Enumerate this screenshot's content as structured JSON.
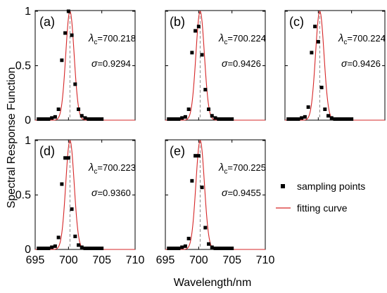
{
  "figure": {
    "ylabel": "Spectral Response Function",
    "xlabel": "Wavelength/nm",
    "legend": {
      "points_label": "sampling points",
      "curve_label": "fitting curve",
      "placement": "middle-right"
    }
  },
  "colors": {
    "points": "#000000",
    "curve": "#d62728",
    "center_line": "#8c8c8c",
    "axes": "#000000"
  },
  "chart_data": [
    {
      "type": "scatter",
      "panel_label": "(a)",
      "lambda_text": "700.218",
      "sigma_text": "0.9294",
      "xlim": [
        695,
        710
      ],
      "ylim": [
        0,
        1
      ],
      "xticks": [
        695,
        700,
        705,
        710
      ],
      "yticks": [
        0,
        0.5,
        1
      ],
      "ytick_labels": [
        "0",
        "0.5",
        "1"
      ],
      "xtick_labels": [],
      "center": 700.218,
      "sigma": 0.9294,
      "peak": 1.0,
      "x": [
        695.5,
        696,
        696.5,
        697,
        697.5,
        698,
        698.5,
        699,
        699.5,
        700,
        700.5,
        701,
        701.5,
        702,
        702.5,
        703,
        703.5,
        704,
        704.5,
        705
      ],
      "y": [
        0.01,
        0.01,
        0.01,
        0.01,
        0.02,
        0.03,
        0.1,
        0.55,
        0.8,
        1.0,
        0.78,
        0.33,
        0.1,
        0.04,
        0.02,
        0.01,
        0.01,
        0.01,
        0.01,
        0.01
      ]
    },
    {
      "type": "scatter",
      "panel_label": "(b)",
      "lambda_text": "700.224",
      "sigma_text": "0.9426",
      "xlim": [
        695,
        710
      ],
      "ylim": [
        0,
        1
      ],
      "xticks": [
        695,
        700,
        705,
        710
      ],
      "yticks": [
        0,
        0.5,
        1
      ],
      "ytick_labels": [],
      "xtick_labels": [],
      "center": 700.224,
      "sigma": 0.9426,
      "peak": 1.0,
      "x": [
        695.5,
        696,
        696.5,
        697,
        697.5,
        698,
        698.5,
        699,
        699.5,
        700,
        700.5,
        701,
        701.5,
        702,
        702.5,
        703,
        703.5,
        704,
        704.5,
        705
      ],
      "y": [
        0.01,
        0.01,
        0.01,
        0.01,
        0.02,
        0.03,
        0.1,
        0.62,
        0.82,
        0.86,
        0.6,
        0.28,
        0.1,
        0.04,
        0.02,
        0.01,
        0.01,
        0.01,
        0.01,
        0.01
      ]
    },
    {
      "type": "scatter",
      "panel_label": "(c)",
      "lambda_text": "700.224",
      "sigma_text": "0.9426",
      "xlim": [
        695,
        710
      ],
      "ylim": [
        0,
        1
      ],
      "xticks": [
        695,
        700,
        705,
        710
      ],
      "yticks": [
        0,
        0.5,
        1
      ],
      "ytick_labels": [],
      "xtick_labels": [],
      "center": 700.224,
      "sigma": 0.9426,
      "peak": 1.0,
      "x": [
        695.5,
        696,
        696.5,
        697,
        697.5,
        698,
        698.5,
        699,
        699.5,
        700,
        700.5,
        701,
        701.5,
        702,
        702.5,
        703,
        703.5,
        704,
        704.5,
        705
      ],
      "y": [
        0.01,
        0.01,
        0.01,
        0.01,
        0.02,
        0.03,
        0.12,
        0.62,
        0.86,
        0.72,
        0.3,
        0.1,
        0.04,
        0.02,
        0.01,
        0.01,
        0.01,
        0.01,
        0.01,
        0.01
      ]
    },
    {
      "type": "scatter",
      "panel_label": "(d)",
      "lambda_text": "700.223",
      "sigma_text": "0.9360",
      "xlim": [
        695,
        710
      ],
      "ylim": [
        0,
        1
      ],
      "xticks": [
        695,
        700,
        705,
        710
      ],
      "yticks": [
        0,
        0.5,
        1
      ],
      "ytick_labels": [
        "0",
        "0.5",
        "1"
      ],
      "xtick_labels": [
        "695",
        "700",
        "705",
        "710"
      ],
      "center": 700.223,
      "sigma": 0.936,
      "peak": 1.0,
      "x": [
        695.5,
        696,
        696.5,
        697,
        697.5,
        698,
        698.5,
        699,
        699.5,
        700,
        700.5,
        701,
        701.5,
        702,
        702.5,
        703,
        703.5,
        704,
        704.5,
        705
      ],
      "y": [
        0.01,
        0.01,
        0.01,
        0.01,
        0.02,
        0.03,
        0.11,
        0.6,
        0.84,
        0.84,
        0.37,
        0.12,
        0.04,
        0.02,
        0.01,
        0.01,
        0.01,
        0.01,
        0.01,
        0.01
      ]
    },
    {
      "type": "scatter",
      "panel_label": "(e)",
      "lambda_text": "700.225",
      "sigma_text": "0.9455",
      "xlim": [
        695,
        710
      ],
      "ylim": [
        0,
        1
      ],
      "xticks": [
        695,
        700,
        705,
        710
      ],
      "yticks": [
        0,
        0.5,
        1
      ],
      "ytick_labels": [],
      "xtick_labels": [
        "695",
        "700",
        "705",
        "710"
      ],
      "center": 700.225,
      "sigma": 0.9455,
      "peak": 1.0,
      "x": [
        695.5,
        696,
        696.5,
        697,
        697.5,
        698,
        698.5,
        699,
        699.5,
        700,
        700.5,
        701,
        701.5,
        702,
        702.5,
        703,
        703.5,
        704,
        704.5,
        705
      ],
      "y": [
        0.01,
        0.01,
        0.01,
        0.01,
        0.02,
        0.03,
        0.1,
        0.63,
        0.86,
        0.86,
        0.57,
        0.2,
        0.05,
        0.02,
        0.01,
        0.01,
        0.01,
        0.01,
        0.01,
        0.01
      ]
    }
  ]
}
